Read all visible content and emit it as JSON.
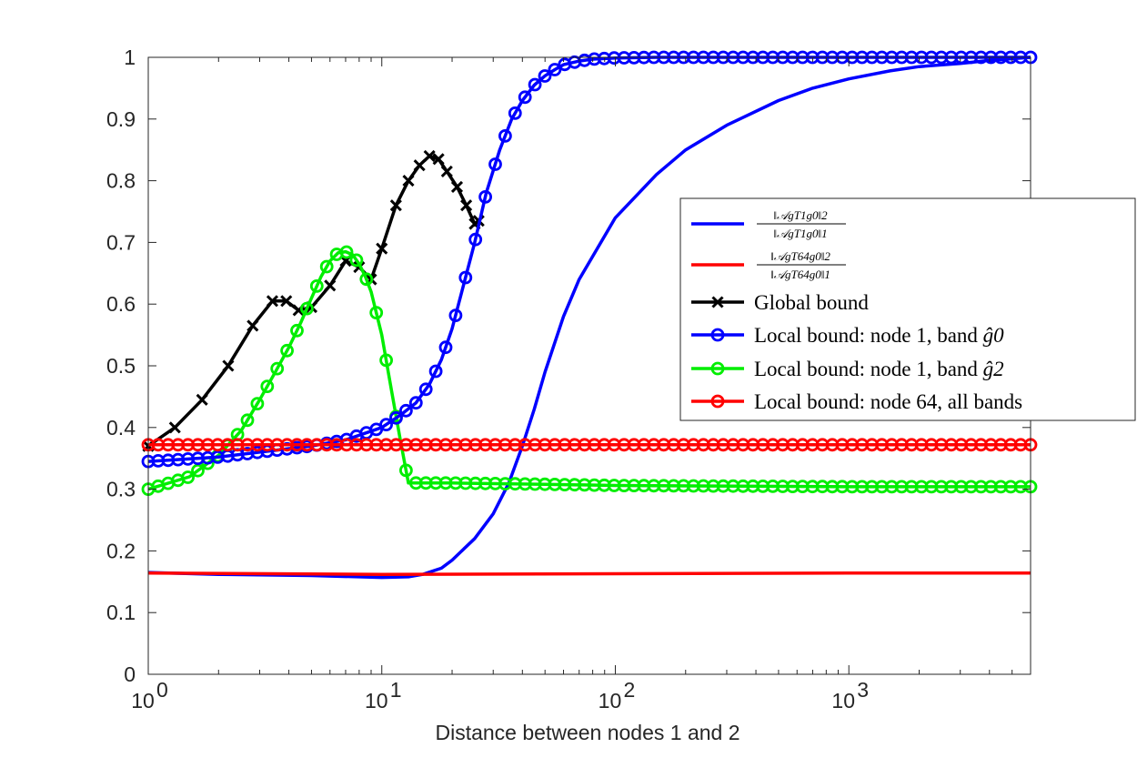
{
  "chart_data": {
    "type": "line",
    "xscale": "log",
    "xlim": [
      1,
      6000
    ],
    "ylim": [
      0,
      1
    ],
    "xlabel": "Distance between nodes 1 and 2",
    "ylabel": "",
    "title": "",
    "xticks": [
      {
        "value": 1,
        "base": "10",
        "exp": "0"
      },
      {
        "value": 10,
        "base": "10",
        "exp": "1"
      },
      {
        "value": 100,
        "base": "10",
        "exp": "2"
      },
      {
        "value": 1000,
        "base": "10",
        "exp": "3"
      }
    ],
    "yticks": [
      {
        "value": 0,
        "label": "0"
      },
      {
        "value": 0.1,
        "label": "0.1"
      },
      {
        "value": 0.2,
        "label": "0.2"
      },
      {
        "value": 0.3,
        "label": "0.3"
      },
      {
        "value": 0.4,
        "label": "0.4"
      },
      {
        "value": 0.5,
        "label": "0.5"
      },
      {
        "value": 0.6,
        "label": "0.6"
      },
      {
        "value": 0.7,
        "label": "0.7"
      },
      {
        "value": 0.8,
        "label": "0.8"
      },
      {
        "value": 0.9,
        "label": "0.9"
      },
      {
        "value": 1,
        "label": "1"
      }
    ],
    "grid": false,
    "legend_position": "right",
    "series": [
      {
        "key": "blue_ratio",
        "color": "#0000ff",
        "marker": "none",
        "legend": {
          "num": "‖𝒜gT1g0‖2",
          "den": "‖𝒜gT1g0‖1"
        },
        "x": [
          1,
          2,
          5,
          10,
          13,
          15,
          18,
          20,
          25,
          30,
          35,
          40,
          45,
          50,
          60,
          70,
          100,
          150,
          200,
          300,
          500,
          700,
          1000,
          1500,
          2000,
          3000,
          4000,
          6000
        ],
        "y": [
          0.165,
          0.162,
          0.16,
          0.157,
          0.158,
          0.162,
          0.172,
          0.185,
          0.22,
          0.26,
          0.31,
          0.37,
          0.43,
          0.49,
          0.58,
          0.64,
          0.74,
          0.81,
          0.85,
          0.89,
          0.93,
          0.95,
          0.965,
          0.978,
          0.985,
          0.99,
          0.995,
          1.0
        ]
      },
      {
        "key": "red_ratio",
        "color": "#ff0000",
        "marker": "none",
        "legend": {
          "num": "‖𝒜gT64g0‖2",
          "den": "‖𝒜gT64g0‖1"
        },
        "x": [
          1,
          10,
          100,
          1000,
          6000
        ],
        "y": [
          0.164,
          0.162,
          0.163,
          0.164,
          0.164
        ]
      },
      {
        "key": "global",
        "color": "#000000",
        "marker": "x",
        "legend_label": "Global bound",
        "x": [
          1,
          1.3,
          1.7,
          2.2,
          2.8,
          3.4,
          3.9,
          4.4,
          5.0,
          6.0,
          7.0,
          8.0,
          9.0,
          10.0,
          11.5,
          13.0,
          14.5,
          16.0,
          17.5,
          19.0,
          21.0,
          23.0,
          25.0,
          26.0
        ],
        "y": [
          0.37,
          0.4,
          0.445,
          0.5,
          0.565,
          0.605,
          0.605,
          0.59,
          0.595,
          0.63,
          0.67,
          0.66,
          0.64,
          0.69,
          0.76,
          0.8,
          0.825,
          0.84,
          0.835,
          0.815,
          0.79,
          0.76,
          0.73,
          0.735
        ]
      },
      {
        "key": "local_g0",
        "color": "#0000ff",
        "marker": "o",
        "legend_label": "Local bound: node 1, band ",
        "legend_math": "ĝ0",
        "x": [
          1,
          2,
          3,
          5,
          7,
          10,
          12,
          14,
          16,
          18,
          20,
          22,
          25,
          28,
          32,
          36,
          40,
          45,
          50,
          55,
          60,
          70,
          80,
          100,
          150,
          200,
          500,
          1000,
          3000,
          6000
        ],
        "y": [
          0.345,
          0.352,
          0.36,
          0.37,
          0.38,
          0.4,
          0.42,
          0.44,
          0.47,
          0.51,
          0.56,
          0.62,
          0.7,
          0.78,
          0.85,
          0.9,
          0.93,
          0.955,
          0.97,
          0.98,
          0.988,
          0.994,
          0.997,
          0.999,
          1.0,
          1.0,
          1.0,
          1.0,
          1.0,
          1.0
        ],
        "marker_count": 90
      },
      {
        "key": "local_g2",
        "color": "#00ee00",
        "marker": "o",
        "legend_label": "Local bound: node 1, band ",
        "legend_math": "ĝ2",
        "x": [
          1,
          1.5,
          2,
          2.5,
          3,
          3.5,
          4,
          4.5,
          5,
          5.5,
          6,
          6.5,
          7,
          7.5,
          8,
          8.5,
          9,
          10,
          11,
          12,
          13,
          14,
          16,
          20,
          50,
          100,
          1000,
          6000
        ],
        "y": [
          0.3,
          0.32,
          0.355,
          0.395,
          0.445,
          0.49,
          0.53,
          0.57,
          0.61,
          0.645,
          0.67,
          0.683,
          0.685,
          0.68,
          0.665,
          0.645,
          0.62,
          0.55,
          0.46,
          0.38,
          0.31,
          0.31,
          0.31,
          0.31,
          0.308,
          0.306,
          0.304,
          0.304
        ],
        "marker_count": 90
      },
      {
        "key": "local_64",
        "color": "#ff0000",
        "marker": "o",
        "legend_label": "Local bound: node 64, all bands",
        "x": [
          1,
          6000
        ],
        "y": [
          0.372,
          0.372
        ],
        "marker_count": 90
      }
    ]
  }
}
